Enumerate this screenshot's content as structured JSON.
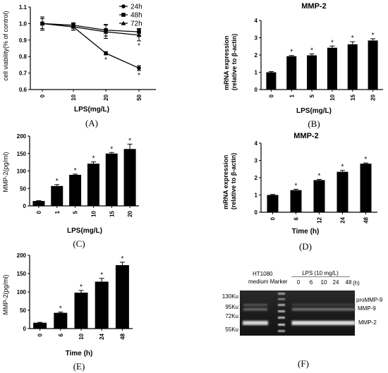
{
  "chart_data": [
    {
      "id": "A",
      "type": "line",
      "caption": "(A)",
      "title": "",
      "xlabel": "LPS(mg/L)",
      "ylabel": "cell viability(% of control)",
      "categories": [
        "0",
        "10",
        "20",
        "50"
      ],
      "ylim": [
        0.6,
        1.1
      ],
      "yticks": [
        "0.6",
        "0.7",
        "0.8",
        "0.9",
        "1.0",
        "1.1"
      ],
      "legend_position": "top-right",
      "series": [
        {
          "name": "24h",
          "marker": "circle",
          "values": [
            1.0,
            0.98,
            0.82,
            0.73
          ],
          "errors": [
            0.04,
            0.02,
            0.01,
            0.015
          ]
        },
        {
          "name": "48h",
          "marker": "square",
          "values": [
            1.0,
            0.99,
            0.96,
            0.95
          ],
          "errors": [
            0.04,
            0.015,
            0.035,
            0.02
          ]
        },
        {
          "name": "72h",
          "marker": "triangle",
          "values": [
            1.0,
            0.98,
            0.95,
            0.93
          ],
          "errors": [
            0.03,
            0.02,
            0.04,
            0.035
          ]
        }
      ],
      "significance": [
        {
          "series": 0,
          "index": 2,
          "mark": "*"
        },
        {
          "series": 0,
          "index": 3,
          "mark": "*"
        },
        {
          "series": 2,
          "index": 3,
          "mark": "*"
        }
      ]
    },
    {
      "id": "B",
      "type": "bar",
      "caption": "(B)",
      "title": "MMP-2",
      "xlabel": "LPS(mg/L)",
      "ylabel": "mRNA expression (relative to β-actin)",
      "categories": [
        "0",
        "1",
        "5",
        "10",
        "15",
        "20"
      ],
      "values": [
        1.0,
        1.93,
        1.98,
        2.42,
        2.62,
        2.84
      ],
      "errors": [
        0.04,
        0.04,
        0.08,
        0.1,
        0.15,
        0.1
      ],
      "ylim": [
        0,
        4
      ],
      "yticks": [
        "0",
        "1",
        "2",
        "3",
        "4"
      ],
      "significant": [
        "",
        "*",
        "*",
        "*",
        "*",
        "*"
      ]
    },
    {
      "id": "C",
      "type": "bar",
      "caption": "(C)",
      "title": "",
      "xlabel": "LPS(mg/L)",
      "ylabel": "MMP-2(pg/ml)",
      "categories": [
        "0",
        "1",
        "5",
        "10",
        "15",
        "20"
      ],
      "values": [
        14,
        57,
        89,
        121,
        150,
        163
      ],
      "errors": [
        1,
        4,
        2,
        5,
        3,
        14
      ],
      "ylim": [
        0,
        200
      ],
      "yticks": [
        "0",
        "50",
        "100",
        "150",
        "200"
      ],
      "significant": [
        "",
        "*",
        "*",
        "*",
        "*",
        "*"
      ]
    },
    {
      "id": "D",
      "type": "bar",
      "caption": "(D)",
      "title": "MMP-2",
      "xlabel": "Time (h)",
      "ylabel": "mRNA expression (relative to β-actin)",
      "categories": [
        "0",
        "6",
        "12",
        "24",
        "48"
      ],
      "values": [
        1.0,
        1.28,
        1.86,
        2.34,
        2.81
      ],
      "errors": [
        0.03,
        0.05,
        0.04,
        0.08,
        0.04
      ],
      "ylim": [
        0,
        4
      ],
      "yticks": [
        "0",
        "1",
        "2",
        "3",
        "4"
      ],
      "significant": [
        "",
        "*",
        "*",
        "*",
        "*"
      ]
    },
    {
      "id": "E",
      "type": "bar",
      "caption": "(E)",
      "title": "",
      "xlabel": "Time (h)",
      "ylabel": "MMP-2(pg/ml)",
      "categories": [
        "0",
        "6",
        "10",
        "24",
        "48"
      ],
      "values": [
        16,
        43,
        98,
        128,
        173
      ],
      "errors": [
        1,
        2,
        6,
        9,
        8
      ],
      "ylim": [
        0,
        200
      ],
      "yticks": [
        "0",
        "50",
        "100",
        "150",
        "200"
      ],
      "significant": [
        "",
        "*",
        "*",
        "*",
        "*"
      ]
    }
  ],
  "gel": {
    "caption": "(F)",
    "header_left_1": "HT1080",
    "header_left_2": "medium Marker",
    "condition": "LPS (10 mg/L)",
    "lanes": [
      "0",
      "6",
      "10",
      "24",
      "48"
    ],
    "unit": "(h)",
    "size_markers": [
      "130Ku",
      "95Ku",
      "72Ku",
      "55Ku"
    ],
    "band_labels": [
      "proMMP-9",
      "MMP-9",
      "MMP-2"
    ]
  }
}
